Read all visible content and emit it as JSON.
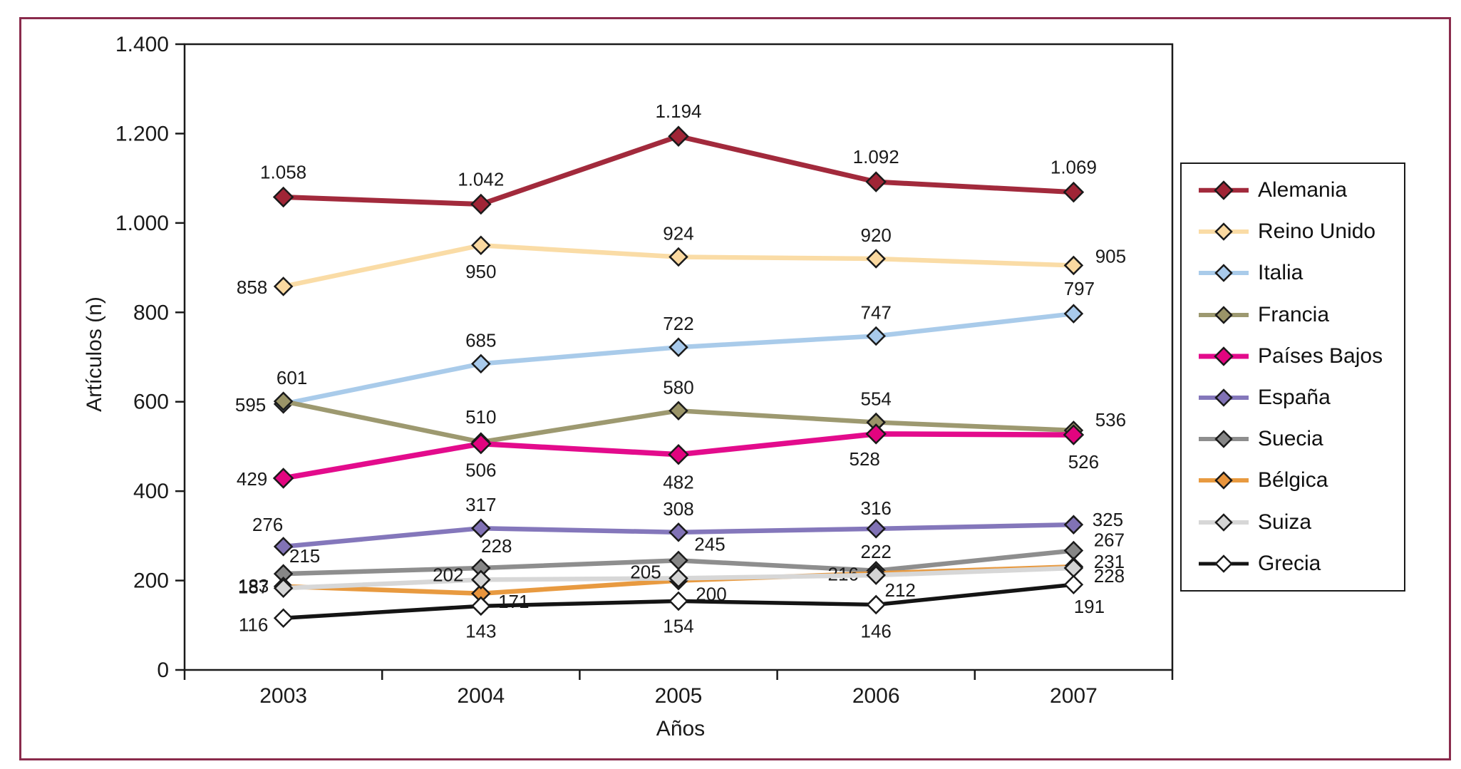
{
  "figure": {
    "background": "#ffffff",
    "border_color": "#8A2B4C",
    "text_color": "#1a1a1a"
  },
  "axes": {
    "y_title": "Artículos (n)",
    "x_title": "Años"
  },
  "chart_data": {
    "type": "line",
    "title": "",
    "xlabel": "Años",
    "ylabel": "Artículos (n)",
    "x_categories": [
      "2003",
      "2004",
      "2005",
      "2006",
      "2007"
    ],
    "y_tick_labels": [
      "0",
      "200",
      "400",
      "600",
      "800",
      "1.000",
      "1.200",
      "1.400"
    ],
    "y_tick_values": [
      0,
      200,
      400,
      600,
      800,
      1000,
      1200,
      1400
    ],
    "ylim": [
      0,
      1400
    ],
    "grid": false,
    "legend_position": "right",
    "series": [
      {
        "name": "Alemania",
        "color": "#A22A3C",
        "marker_fill": "#A02536",
        "line_width": 7,
        "marker_r": 13,
        "values": [
          1058,
          1042,
          1194,
          1092,
          1069
        ],
        "labels": [
          "1.058",
          "1.042",
          "1.194",
          "1.092",
          "1.069"
        ],
        "label_offsets": [
          [
            0,
            -26
          ],
          [
            0,
            -26
          ],
          [
            0,
            -26
          ],
          [
            0,
            -26
          ],
          [
            0,
            -26
          ]
        ]
      },
      {
        "name": "Reino Unido",
        "color": "#FADCA6",
        "marker_fill": "#FBD9A0",
        "line_width": 6.5,
        "marker_r": 12,
        "values": [
          858,
          950,
          924,
          920,
          905
        ],
        "labels": [
          "858",
          "950",
          "924",
          "920",
          "905"
        ],
        "label_offsets": [
          [
            -44,
            10
          ],
          [
            0,
            46
          ],
          [
            0,
            -24
          ],
          [
            0,
            -24
          ],
          [
            52,
            -4
          ]
        ]
      },
      {
        "name": "Italia",
        "color": "#A9CBEA",
        "marker_fill": "#A8CAEC",
        "line_width": 6.5,
        "marker_r": 12,
        "values": [
          595,
          685,
          722,
          747,
          797
        ],
        "labels": [
          "595",
          "685",
          "722",
          "747",
          "797"
        ],
        "label_offsets": [
          [
            -46,
            10
          ],
          [
            0,
            -24
          ],
          [
            0,
            -24
          ],
          [
            0,
            -24
          ],
          [
            8,
            -26
          ]
        ]
      },
      {
        "name": "Francia",
        "color": "#9D9970",
        "marker_fill": "#9A9468",
        "line_width": 6.5,
        "marker_r": 12,
        "values": [
          601,
          510,
          580,
          554,
          536
        ],
        "labels": [
          "601",
          "510",
          "580",
          "554",
          "536"
        ],
        "label_offsets": [
          [
            12,
            -24
          ],
          [
            0,
            -26
          ],
          [
            0,
            -24
          ],
          [
            0,
            -24
          ],
          [
            52,
            -6
          ]
        ]
      },
      {
        "name": "Países Bajos",
        "color": "#E30B8C",
        "marker_fill": "#E2047F",
        "line_width": 7.5,
        "marker_r": 13,
        "values": [
          429,
          506,
          482,
          528,
          526
        ],
        "labels": [
          "429",
          "506",
          "482",
          "528",
          "526"
        ],
        "label_offsets": [
          [
            -44,
            10
          ],
          [
            0,
            46
          ],
          [
            0,
            48
          ],
          [
            -16,
            44
          ],
          [
            14,
            47
          ]
        ]
      },
      {
        "name": "España",
        "color": "#8477BB",
        "marker_fill": "#8172B5",
        "line_width": 6.5,
        "marker_r": 12,
        "values": [
          276,
          317,
          308,
          316,
          325
        ],
        "labels": [
          "276",
          "317",
          "308",
          "316",
          "325"
        ],
        "label_offsets": [
          [
            -22,
            -22
          ],
          [
            0,
            -24
          ],
          [
            0,
            -24
          ],
          [
            0,
            -20
          ],
          [
            48,
            2
          ]
        ]
      },
      {
        "name": "Suecia",
        "color": "#8E8E8E",
        "marker_fill": "#868686",
        "line_width": 6.5,
        "marker_r": 12,
        "values": [
          215,
          228,
          245,
          222,
          267
        ],
        "labels": [
          "215",
          "228",
          "245",
          "222",
          "267"
        ],
        "label_offsets": [
          [
            30,
            -16
          ],
          [
            22,
            -22
          ],
          [
            44,
            -14
          ],
          [
            0,
            -18
          ],
          [
            50,
            -6
          ]
        ]
      },
      {
        "name": "Bélgica",
        "color": "#E89A40",
        "marker_fill": "#E8943C",
        "line_width": 6.5,
        "marker_r": 12,
        "values": [
          187,
          171,
          200,
          216,
          231
        ],
        "labels": [
          "187",
          "171",
          "200",
          "216",
          "231"
        ],
        "label_offsets": [
          [
            -42,
            10
          ],
          [
            46,
            20
          ],
          [
            46,
            28
          ],
          [
            -46,
            10
          ],
          [
            50,
            2
          ]
        ]
      },
      {
        "name": "Suiza",
        "color": "#D7D7D7",
        "marker_fill": "#D4D4D4",
        "line_width": 6.5,
        "marker_r": 12,
        "values": [
          183,
          202,
          205,
          212,
          228
        ],
        "labels": [
          "183",
          "202",
          "205",
          "212",
          "228"
        ],
        "label_offsets": [
          [
            -42,
            6
          ],
          [
            -46,
            2
          ],
          [
            -46,
            0
          ],
          [
            34,
            30
          ],
          [
            50,
            20
          ]
        ]
      },
      {
        "name": "Grecia",
        "color": "#141414",
        "marker_fill": "#FFFFFF",
        "line_width": 5.5,
        "marker_r": 12,
        "values": [
          116,
          143,
          154,
          146,
          191
        ],
        "labels": [
          "116",
          "143",
          "154",
          "146",
          "191"
        ],
        "label_offsets": [
          [
            -42,
            18
          ],
          [
            0,
            44
          ],
          [
            0,
            44
          ],
          [
            0,
            46
          ],
          [
            22,
            40
          ]
        ]
      }
    ]
  }
}
